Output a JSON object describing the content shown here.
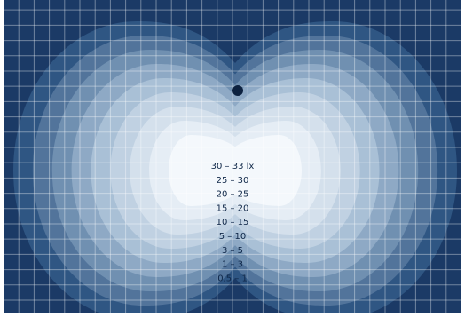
{
  "chart_data": {
    "type": "heatmap",
    "title": "",
    "unit": "lx",
    "grid": true,
    "levels": [
      {
        "label": "30 – 33 lx",
        "min": 30,
        "max": 33,
        "color": "#f4f8fc"
      },
      {
        "label": "25 – 30",
        "min": 25,
        "max": 30,
        "color": "#e5edf5"
      },
      {
        "label": "20 – 25",
        "min": 20,
        "max": 25,
        "color": "#d4e0ec"
      },
      {
        "label": "15 – 20",
        "min": 15,
        "max": 20,
        "color": "#c0d1e2"
      },
      {
        "label": "10 – 15",
        "min": 10,
        "max": 15,
        "color": "#a9c0d6"
      },
      {
        "label": "5 – 10",
        "min": 5,
        "max": 10,
        "color": "#8ea9c5"
      },
      {
        "label": "3 – 5",
        "min": 3,
        "max": 5,
        "color": "#7090b1"
      },
      {
        "label": "1 – 3",
        "min": 1,
        "max": 3,
        "color": "#52749b"
      },
      {
        "label": "0,5 – 1",
        "min": 0.5,
        "max": 1,
        "color": "#2f5683"
      }
    ],
    "background_color": "#1b3a66",
    "luminaire_color": "#0d2240"
  }
}
